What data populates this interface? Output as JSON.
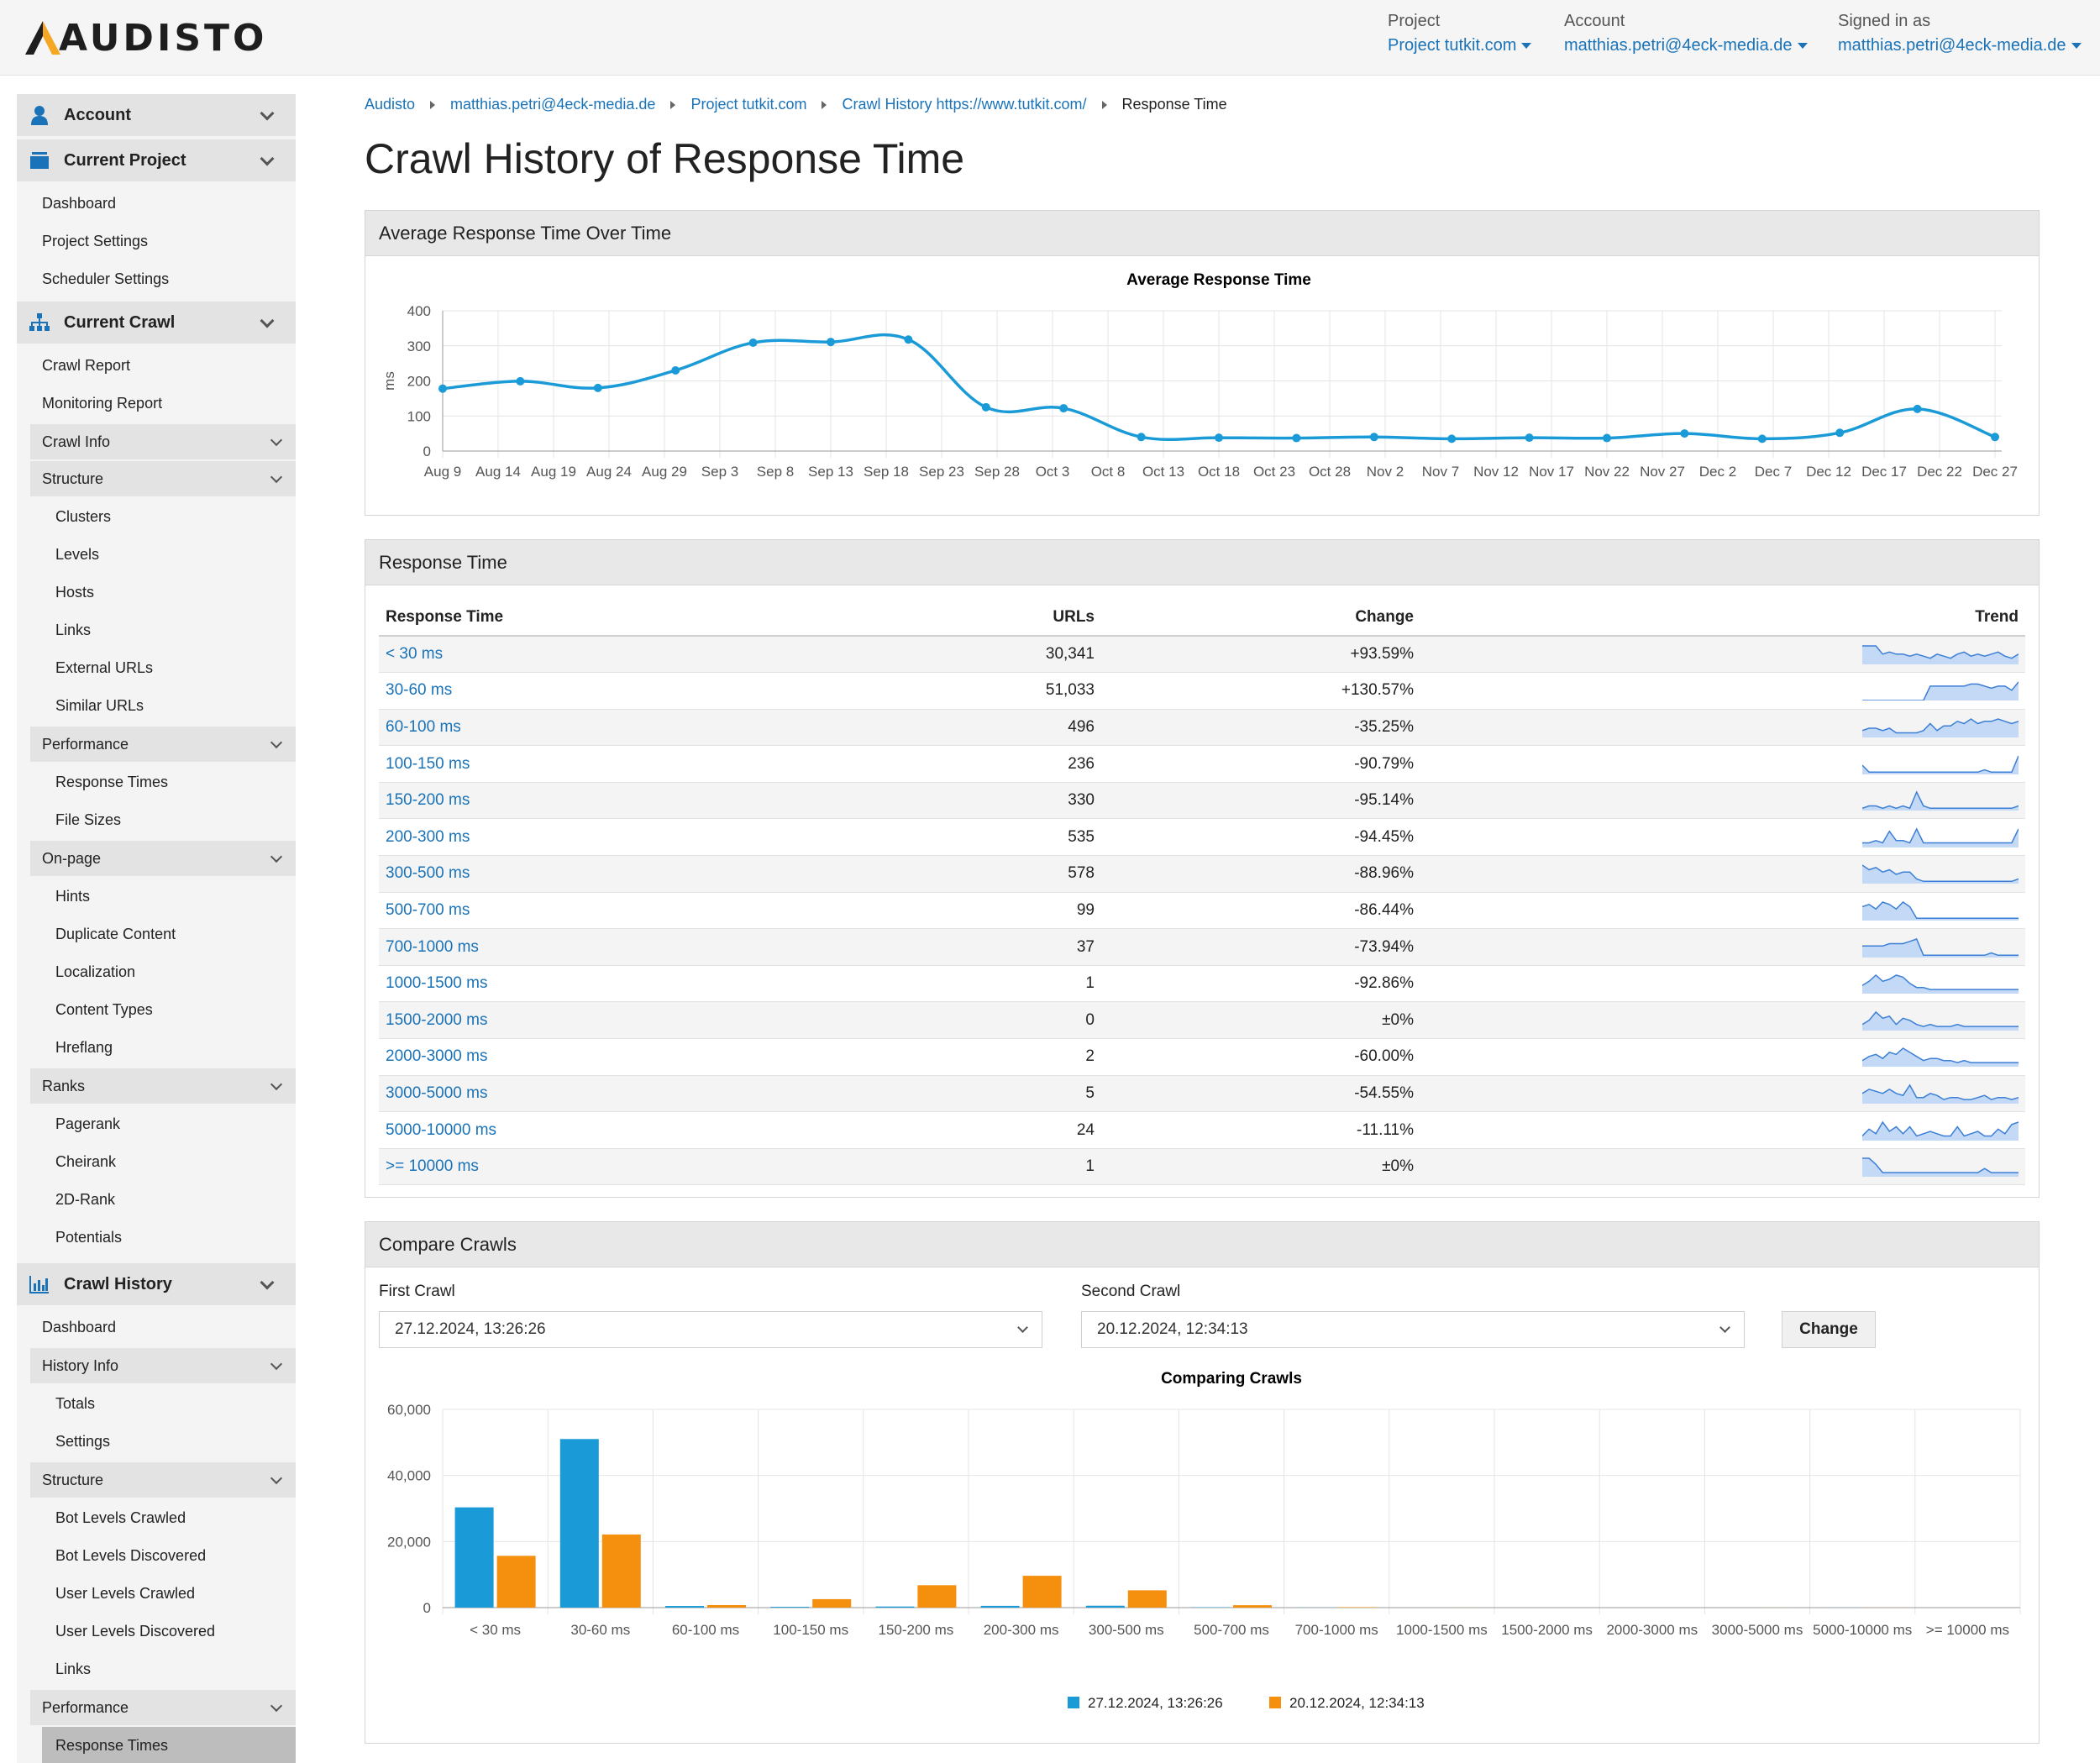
{
  "header": {
    "logo_text": "AUDISTO",
    "project_label": "Project",
    "project_value": "Project tutkit.com",
    "account_label": "Account",
    "account_value": "matthias.petri@4eck-media.de",
    "signed_label": "Signed in as",
    "signed_value": "matthias.petri@4eck-media.de"
  },
  "sidebar": {
    "account": "Account",
    "current_project": "Current Project",
    "project_items": [
      "Dashboard",
      "Project Settings",
      "Scheduler Settings"
    ],
    "current_crawl": "Current Crawl",
    "crawl_items": [
      "Crawl Report",
      "Monitoring Report"
    ],
    "crawl_info": "Crawl Info",
    "structure": "Structure",
    "structure_items": [
      "Clusters",
      "Levels",
      "Hosts",
      "Links",
      "External URLs",
      "Similar URLs"
    ],
    "performance": "Performance",
    "performance_items": [
      "Response Times",
      "File Sizes"
    ],
    "onpage": "On-page",
    "onpage_items": [
      "Hints",
      "Duplicate Content",
      "Localization",
      "Content Types",
      "Hreflang"
    ],
    "ranks": "Ranks",
    "ranks_items": [
      "Pagerank",
      "Cheirank",
      "2D-Rank",
      "Potentials"
    ],
    "crawl_history": "Crawl History",
    "history_dashboard": "Dashboard",
    "history_info": "History Info",
    "history_info_items": [
      "Totals",
      "Settings"
    ],
    "history_structure": "Structure",
    "history_structure_items": [
      "Bot Levels Crawled",
      "Bot Levels Discovered",
      "User Levels Crawled",
      "User Levels Discovered",
      "Links"
    ],
    "history_performance": "Performance",
    "history_performance_active": "Response Times"
  },
  "breadcrumb": [
    "Audisto",
    "matthias.petri@4eck-media.de",
    "Project tutkit.com",
    "Crawl History https://www.tutkit.com/",
    "Response Time"
  ],
  "page_title": "Crawl History of Response Time",
  "panel1_title": "Average Response Time Over Time",
  "panel2_title": "Response Time",
  "panel3_title": "Compare Crawls",
  "table": {
    "headers": [
      "Response Time",
      "URLs",
      "Change",
      "Trend"
    ],
    "rows": [
      {
        "range": "< 30 ms",
        "urls": "30,341",
        "change": "+93.59%",
        "trend": [
          9,
          9,
          9,
          5,
          6,
          5,
          5,
          4,
          5,
          4,
          3,
          5,
          4,
          3,
          5,
          6,
          4,
          5,
          4,
          5,
          6,
          4,
          3,
          5
        ]
      },
      {
        "range": "30-60 ms",
        "urls": "51,033",
        "change": "+130.57%",
        "trend": [
          0,
          0,
          0,
          0,
          0,
          0,
          0,
          0,
          0,
          0,
          7,
          7,
          7,
          7,
          7,
          7,
          8,
          8,
          7,
          6,
          7,
          7,
          5,
          9
        ]
      },
      {
        "range": "60-100 ms",
        "urls": "496",
        "change": "-35.25%",
        "trend": [
          3,
          4,
          4,
          3,
          4,
          2,
          2,
          2,
          2,
          3,
          6,
          3,
          5,
          5,
          7,
          6,
          8,
          6,
          7,
          7,
          8,
          7,
          6,
          7
        ]
      },
      {
        "range": "100-150 ms",
        "urls": "236",
        "change": "-90.79%",
        "trend": [
          4,
          1,
          1,
          1,
          1,
          1,
          1,
          1,
          1,
          1,
          1,
          1,
          1,
          1,
          1,
          1,
          1,
          1,
          2,
          1,
          1,
          1,
          1,
          8
        ]
      },
      {
        "range": "150-200 ms",
        "urls": "330",
        "change": "-95.14%",
        "trend": [
          1,
          2,
          2,
          1,
          2,
          1,
          2,
          1,
          8,
          2,
          1,
          1,
          1,
          1,
          1,
          1,
          1,
          1,
          1,
          1,
          1,
          1,
          1,
          2
        ]
      },
      {
        "range": "200-300 ms",
        "urls": "535",
        "change": "-94.45%",
        "trend": [
          2,
          2,
          3,
          2,
          7,
          3,
          3,
          2,
          8,
          2,
          2,
          2,
          2,
          2,
          2,
          2,
          2,
          2,
          2,
          2,
          2,
          2,
          2,
          8
        ]
      },
      {
        "range": "300-500 ms",
        "urls": "578",
        "change": "-88.96%",
        "trend": [
          8,
          6,
          7,
          5,
          6,
          4,
          5,
          5,
          2,
          1,
          1,
          1,
          1,
          1,
          1,
          1,
          1,
          1,
          1,
          1,
          1,
          1,
          1,
          2
        ]
      },
      {
        "range": "500-700 ms",
        "urls": "99",
        "change": "-86.44%",
        "trend": [
          6,
          7,
          5,
          8,
          7,
          5,
          8,
          6,
          1,
          1,
          1,
          1,
          1,
          1,
          1,
          1,
          1,
          1,
          1,
          1,
          1,
          1,
          1,
          1
        ]
      },
      {
        "range": "700-1000 ms",
        "urls": "37",
        "change": "-73.94%",
        "trend": [
          5,
          5,
          5,
          5,
          6,
          6,
          6,
          7,
          8,
          1,
          1,
          1,
          1,
          1,
          1,
          1,
          1,
          1,
          1,
          2,
          1,
          1,
          1,
          1
        ]
      },
      {
        "range": "1000-1500 ms",
        "urls": "1",
        "change": "-92.86%",
        "trend": [
          4,
          6,
          9,
          6,
          7,
          9,
          8,
          5,
          3,
          3,
          2,
          2,
          2,
          2,
          2,
          2,
          2,
          2,
          2,
          2,
          2,
          2,
          2,
          2
        ]
      },
      {
        "range": "1500-2000 ms",
        "urls": "0",
        "change": "±0%",
        "trend": [
          3,
          5,
          9,
          6,
          7,
          3,
          6,
          5,
          3,
          2,
          3,
          2,
          2,
          2,
          3,
          2,
          2,
          2,
          2,
          2,
          2,
          2,
          2,
          2
        ]
      },
      {
        "range": "2000-3000 ms",
        "urls": "2",
        "change": "-60.00%",
        "trend": [
          3,
          5,
          6,
          4,
          7,
          6,
          9,
          7,
          5,
          3,
          4,
          4,
          3,
          3,
          2,
          3,
          2,
          2,
          2,
          2,
          2,
          2,
          2,
          2
        ]
      },
      {
        "range": "3000-5000 ms",
        "urls": "5",
        "change": "-54.55%",
        "trend": [
          5,
          7,
          6,
          5,
          7,
          5,
          4,
          9,
          3,
          3,
          5,
          4,
          2,
          3,
          3,
          2,
          2,
          3,
          4,
          2,
          3,
          3,
          2,
          3
        ]
      },
      {
        "range": "5000-10000 ms",
        "urls": "24",
        "change": "-11.11%",
        "trend": [
          2,
          5,
          3,
          8,
          4,
          6,
          3,
          6,
          2,
          3,
          4,
          3,
          2,
          2,
          6,
          2,
          3,
          4,
          2,
          2,
          5,
          3,
          7,
          8
        ]
      },
      {
        "range": ">= 10000 ms",
        "urls": "1",
        "change": "±0%",
        "trend": [
          9,
          9,
          6,
          2,
          2,
          2,
          2,
          2,
          2,
          2,
          2,
          2,
          2,
          2,
          2,
          2,
          2,
          2,
          4,
          2,
          2,
          2,
          2,
          2
        ]
      }
    ]
  },
  "compare": {
    "first_label": "First Crawl",
    "first_value": "27.12.2024, 13:26:26",
    "second_label": "Second Crawl",
    "second_value": "20.12.2024, 12:34:13",
    "button": "Change"
  },
  "chart_data": [
    {
      "type": "line",
      "title": "Average Response Time",
      "ylabel": "ms",
      "xlabel": "",
      "ylim": [
        0,
        400
      ],
      "yticks": [
        0,
        100,
        200,
        300,
        400
      ],
      "grid": true,
      "x_ticks": [
        "Aug 9",
        "Aug 14",
        "Aug 19",
        "Aug 24",
        "Aug 29",
        "Sep 3",
        "Sep 8",
        "Sep 13",
        "Sep 18",
        "Sep 23",
        "Sep 28",
        "Oct 3",
        "Oct 8",
        "Oct 13",
        "Oct 18",
        "Oct 23",
        "Oct 28",
        "Nov 2",
        "Nov 7",
        "Nov 12",
        "Nov 17",
        "Nov 22",
        "Nov 27",
        "Dec 2",
        "Dec 7",
        "Dec 12",
        "Dec 17",
        "Dec 22",
        "Dec 27"
      ],
      "color": "#1a9bd7",
      "x": [
        "Aug 9",
        "Aug 16",
        "Aug 23",
        "Aug 30",
        "Sep 6",
        "Sep 13",
        "Sep 20",
        "Sep 27",
        "Oct 4",
        "Oct 11",
        "Oct 18",
        "Oct 25",
        "Nov 1",
        "Nov 8",
        "Nov 15",
        "Nov 22",
        "Nov 29",
        "Dec 6",
        "Dec 13",
        "Dec 20",
        "Dec 27"
      ],
      "y": [
        178,
        199,
        180,
        230,
        309,
        311,
        318,
        125,
        122,
        40,
        38,
        37,
        40,
        35,
        38,
        37,
        50,
        35,
        52,
        120,
        40
      ]
    },
    {
      "type": "bar",
      "title": "Comparing Crawls",
      "ylim": [
        0,
        60000
      ],
      "yticks": [
        "0",
        "20,000",
        "40,000",
        "60,000"
      ],
      "grid": true,
      "legend": "bottom",
      "categories": [
        "< 30 ms",
        "30-60 ms",
        "60-100 ms",
        "100-150 ms",
        "150-200 ms",
        "200-300 ms",
        "300-500 ms",
        "500-700 ms",
        "700-1000 ms",
        "1000-1500 ms",
        "1500-2000 ms",
        "2000-3000 ms",
        "3000-5000 ms",
        "5000-10000 ms",
        ">= 10000 ms"
      ],
      "series": [
        {
          "name": "27.12.2024, 13:26:26",
          "color": "#1a9bd7",
          "values": [
            30341,
            51033,
            496,
            236,
            330,
            535,
            578,
            99,
            37,
            1,
            0,
            2,
            5,
            24,
            1
          ]
        },
        {
          "name": "20.12.2024, 12:34:13",
          "color": "#f5900f",
          "values": [
            15673,
            22134,
            766,
            2563,
            6785,
            9639,
            5237,
            730,
            142,
            14,
            0,
            5,
            11,
            27,
            1
          ]
        }
      ]
    }
  ]
}
